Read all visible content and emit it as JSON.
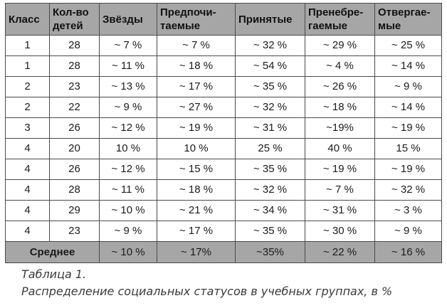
{
  "table": {
    "headers": [
      "Класс",
      "Кол-во\nдетей",
      "Звёзды",
      "Предпочи-\nтаемые",
      "Принятые",
      "Пренебре-\nгаемые",
      "Отвергае-\nмые"
    ],
    "rows": [
      [
        "1",
        "28",
        "~ 7 %",
        "~ 7 %",
        "~ 32 %",
        "~ 29 %",
        "~ 25 %"
      ],
      [
        "1",
        "28",
        "~ 11 %",
        "~ 18 %",
        "~ 54 %",
        "~ 4 %",
        "~ 14 %"
      ],
      [
        "2",
        "23",
        "~ 13 %",
        "~ 17 %",
        "~ 35 %",
        "~ 26 %",
        "~ 9 %"
      ],
      [
        "2",
        "22",
        "~ 9 %",
        "~ 27 %",
        "~ 32 %",
        "~ 18 %",
        "~ 14 %"
      ],
      [
        "3",
        "26",
        "~ 12 %",
        "~ 19 %",
        "~ 31 %",
        "~19%",
        "~ 19 %"
      ],
      [
        "4",
        "20",
        "10 %",
        "10 %",
        "25 %",
        "40 %",
        "15 %"
      ],
      [
        "4",
        "26",
        "~ 12 %",
        "~ 15 %",
        "~ 35 %",
        "~ 19 %",
        "~ 19 %"
      ],
      [
        "4",
        "28",
        "~ 11 %",
        "~ 18 %",
        "~ 32 %",
        "~ 7 %",
        "~ 32 %"
      ],
      [
        "4",
        "29",
        "~ 10 %",
        "~ 21 %",
        "~ 34 %",
        "~ 31 %",
        "~ 3 %"
      ],
      [
        "4",
        "23",
        "~ 9 %",
        "~ 17 %",
        "~ 35 %",
        "~ 30 %",
        "~ 9 %"
      ]
    ],
    "average": {
      "label": "Среднее",
      "values": [
        "~ 10 %",
        "~ 17%",
        "~35%",
        "~ 22 %",
        "~ 16 %"
      ]
    }
  },
  "caption": {
    "line1": "Таблица 1.",
    "line2": "Распределение социальных статусов в учебных группах, в %"
  }
}
